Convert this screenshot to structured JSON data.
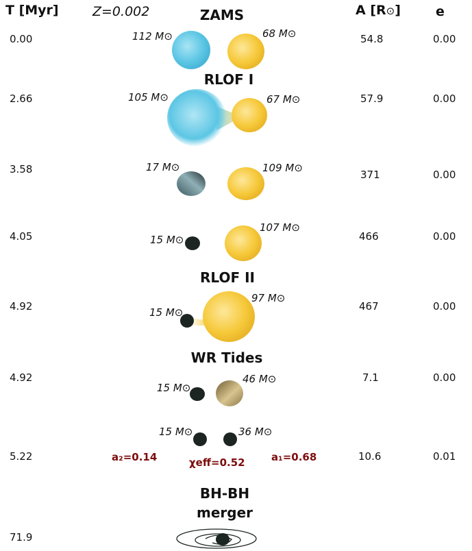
{
  "header": {
    "time_label": "T [Myr]",
    "metallicity": "Z=0.002",
    "separation_label": "A [R",
    "separation_unit_sun": "⊙",
    "separation_close": "]",
    "eccentricity_label": "e"
  },
  "stages": {
    "zams": "ZAMS",
    "rlof1": "RLOF I",
    "rlof2": "RLOF II",
    "wr_tides": "WR Tides",
    "merger_line1": "BH-BH",
    "merger_line2": "merger"
  },
  "rows": [
    {
      "time": "0.00",
      "separation": "54.8",
      "eccentricity": "0.00",
      "mass_left": "112 M⊙",
      "mass_right": "68 M⊙"
    },
    {
      "time": "2.66",
      "separation": "57.9",
      "eccentricity": "0.00",
      "mass_left": "105 M⊙",
      "mass_right": "67 M⊙"
    },
    {
      "time": "3.58",
      "separation": "371",
      "eccentricity": "0.00",
      "mass_left": "17 M⊙",
      "mass_right": "109 M⊙"
    },
    {
      "time": "4.05",
      "separation": "466",
      "eccentricity": "0.00",
      "mass_left": "15 M⊙",
      "mass_right": "107 M⊙"
    },
    {
      "time": "4.92",
      "separation": "467",
      "eccentricity": "0.00",
      "mass_left": "15 M⊙",
      "mass_right": "97 M⊙"
    },
    {
      "time": "4.92",
      "separation": "7.1",
      "eccentricity": "0.00",
      "mass_left": "15 M⊙",
      "mass_right": "46 M⊙"
    },
    {
      "time": "5.22",
      "separation": "10.6",
      "eccentricity": "0.01",
      "mass_left": "15 M⊙",
      "mass_right": "36 M⊙"
    },
    {
      "time": "71.9"
    }
  ],
  "spins": {
    "a2": "a₂=0.14",
    "chi_eff": "χeff=0.52",
    "a1": "a₁=0.68"
  },
  "colors": {
    "ms_blue": "#5cc6e4",
    "ms_yellow": "#f6c93a",
    "stripped_grey": "#5f7f86",
    "wr_olive": "#a6915a",
    "black_hole": "#1c2521",
    "spin_text": "#7d0d0d"
  }
}
